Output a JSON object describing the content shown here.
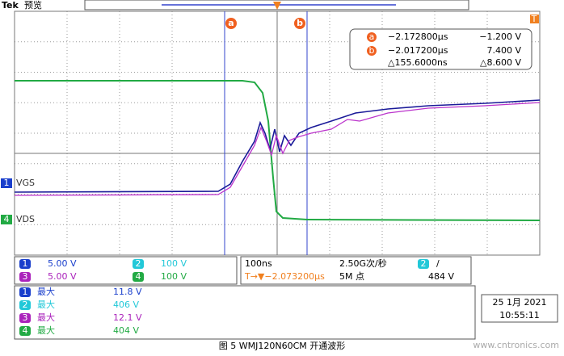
{
  "header": {
    "brand": "Tek",
    "mode": "预览"
  },
  "cursors": {
    "a_label": "a",
    "b_label": "b",
    "a_time": "−2.172800µs",
    "a_volt": "−1.200 V",
    "b_time": "−2.017200µs",
    "b_volt": "7.400 V",
    "delta_time": "△155.6000ns",
    "delta_volt": "△8.600 V",
    "trigger_marker": "T"
  },
  "channels": [
    {
      "num": "1",
      "name": "VGS"
    },
    {
      "num": "4",
      "name": "VDS"
    }
  ],
  "scales": [
    {
      "num": "1",
      "value": "5.00 V"
    },
    {
      "num": "2",
      "value": "100 V"
    },
    {
      "num": "3",
      "value": "5.00 V"
    },
    {
      "num": "4",
      "value": "100 V"
    }
  ],
  "timebase": {
    "horizontal": "100ns",
    "sample_rate": "2.50G次/秒",
    "trigger_position": "T→▼−2.073200µs",
    "record_length": "5M 点",
    "trigger_channel": "2",
    "trigger_slope": "/",
    "trigger_level": "484 V"
  },
  "measurements": [
    {
      "num": "1",
      "label": "最大",
      "value": "11.8 V"
    },
    {
      "num": "2",
      "label": "最大",
      "value": "406 V"
    },
    {
      "num": "3",
      "label": "最大",
      "value": "12.1 V"
    },
    {
      "num": "4",
      "label": "最大",
      "value": "404 V"
    }
  ],
  "datetime": {
    "date": "25 1月 2021",
    "time": "10:55:11"
  },
  "caption": "图 5 WMJ120N60CM  开通波形",
  "watermark": "www.cntronics.com"
}
